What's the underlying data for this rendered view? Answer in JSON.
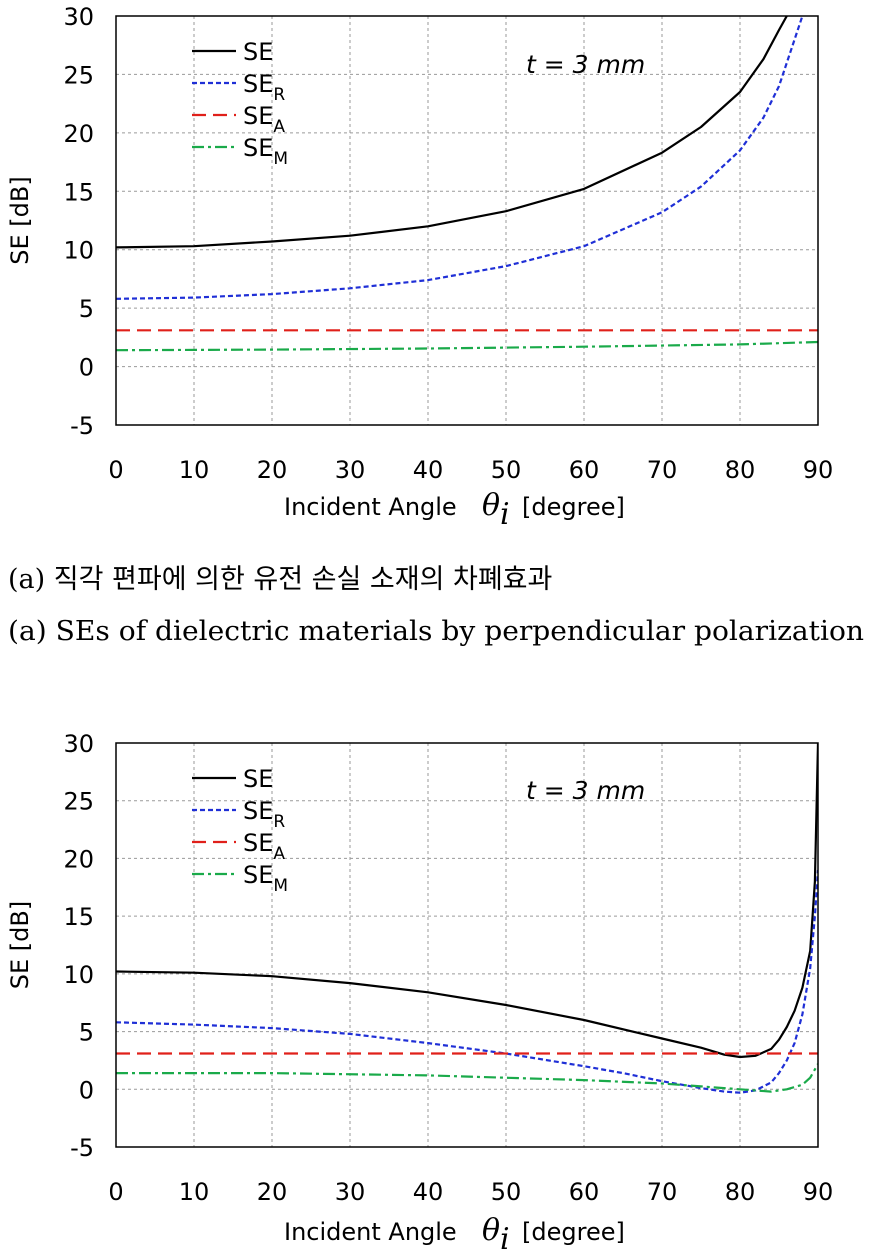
{
  "chart_data": [
    {
      "type": "line",
      "title": "",
      "annotation": "t = 3 mm",
      "xlabel": "Incident Angle",
      "xlabel_symbol": "θ",
      "xlabel_subscript": "i",
      "xlabel_unit": "[degree]",
      "ylabel": "SE [dB]",
      "xlim": [
        0,
        90
      ],
      "ylim": [
        -5,
        30
      ],
      "xticks": [
        "0",
        "10",
        "20",
        "30",
        "40",
        "50",
        "60",
        "70",
        "80",
        "90"
      ],
      "yticks": [
        "-5",
        "0",
        "5",
        "10",
        "15",
        "20",
        "25",
        "30"
      ],
      "legend_position": "top-left",
      "caption_ko": "(a) 직각 편파에 의한 유전 손실 소재의 차폐효과",
      "caption_en": "(a) SEs of dielectric materials by perpendicular polarization",
      "series": [
        {
          "name": "SE",
          "legend_base": "SE",
          "legend_sub": "",
          "color": "#000000",
          "dash": "",
          "x": [
            0,
            10,
            20,
            30,
            40,
            50,
            60,
            70,
            75,
            80,
            83,
            85,
            86
          ],
          "y": [
            10.2,
            10.3,
            10.7,
            11.2,
            12.0,
            13.3,
            15.2,
            18.3,
            20.5,
            23.5,
            26.3,
            28.8,
            30
          ]
        },
        {
          "name": "SE_R",
          "legend_base": "SE",
          "legend_sub": "R",
          "color": "#1f2fd6",
          "dash": "5,3",
          "x": [
            0,
            10,
            20,
            30,
            40,
            50,
            60,
            70,
            75,
            80,
            83,
            85,
            87,
            88
          ],
          "y": [
            5.8,
            5.9,
            6.2,
            6.7,
            7.4,
            8.6,
            10.3,
            13.2,
            15.4,
            18.5,
            21.3,
            24.0,
            28.0,
            30
          ]
        },
        {
          "name": "SE_A",
          "legend_base": "SE",
          "legend_sub": "A",
          "color": "#e0201a",
          "dash": "14,7",
          "x": [
            0,
            90
          ],
          "y": [
            3.1,
            3.1
          ]
        },
        {
          "name": "SE_M",
          "legend_base": "SE",
          "legend_sub": "M",
          "color": "#1aaa4a",
          "dash": "12,4,3,4",
          "x": [
            0,
            20,
            40,
            60,
            80,
            90
          ],
          "y": [
            1.4,
            1.45,
            1.55,
            1.7,
            1.9,
            2.1
          ]
        }
      ]
    },
    {
      "type": "line",
      "title": "",
      "annotation": "t = 3 mm",
      "xlabel": "Incident Angle",
      "xlabel_symbol": "θ",
      "xlabel_subscript": "i",
      "xlabel_unit": "[degree]",
      "ylabel": "SE [dB]",
      "xlim": [
        0,
        90
      ],
      "ylim": [
        -5,
        30
      ],
      "xticks": [
        "0",
        "10",
        "20",
        "30",
        "40",
        "50",
        "60",
        "70",
        "80",
        "90"
      ],
      "yticks": [
        "-5",
        "0",
        "5",
        "10",
        "15",
        "20",
        "25",
        "30"
      ],
      "legend_position": "top-left",
      "series": [
        {
          "name": "SE",
          "legend_base": "SE",
          "legend_sub": "",
          "color": "#000000",
          "dash": "",
          "x": [
            0,
            10,
            20,
            30,
            40,
            50,
            60,
            70,
            75,
            78,
            80,
            82,
            84,
            85,
            86,
            87,
            88,
            89,
            89.6,
            90
          ],
          "y": [
            10.2,
            10.1,
            9.8,
            9.2,
            8.4,
            7.3,
            6.0,
            4.4,
            3.6,
            3.0,
            2.8,
            2.9,
            3.5,
            4.3,
            5.4,
            6.8,
            8.8,
            12.0,
            18.0,
            30
          ]
        },
        {
          "name": "SE_R",
          "legend_base": "SE",
          "legend_sub": "R",
          "color": "#1f2fd6",
          "dash": "5,3",
          "x": [
            0,
            10,
            20,
            30,
            40,
            50,
            60,
            65,
            70,
            75,
            78,
            80,
            82,
            84,
            85,
            86,
            87,
            88,
            89,
            89.6,
            90
          ],
          "y": [
            5.8,
            5.6,
            5.3,
            4.8,
            4.0,
            3.1,
            2.0,
            1.4,
            0.7,
            0.1,
            -0.2,
            -0.3,
            -0.1,
            0.6,
            1.4,
            2.5,
            4.0,
            6.5,
            10.5,
            15.0,
            19.0
          ]
        },
        {
          "name": "SE_A",
          "legend_base": "SE",
          "legend_sub": "A",
          "color": "#e0201a",
          "dash": "14,7",
          "x": [
            0,
            90
          ],
          "y": [
            3.1,
            3.1
          ]
        },
        {
          "name": "SE_M",
          "legend_base": "SE",
          "legend_sub": "M",
          "color": "#1aaa4a",
          "dash": "12,4,3,4",
          "x": [
            0,
            20,
            40,
            60,
            70,
            80,
            84,
            86,
            88,
            89,
            90
          ],
          "y": [
            1.4,
            1.4,
            1.2,
            0.8,
            0.5,
            0.0,
            -0.2,
            0.0,
            0.4,
            1.0,
            2.2
          ]
        }
      ]
    }
  ]
}
